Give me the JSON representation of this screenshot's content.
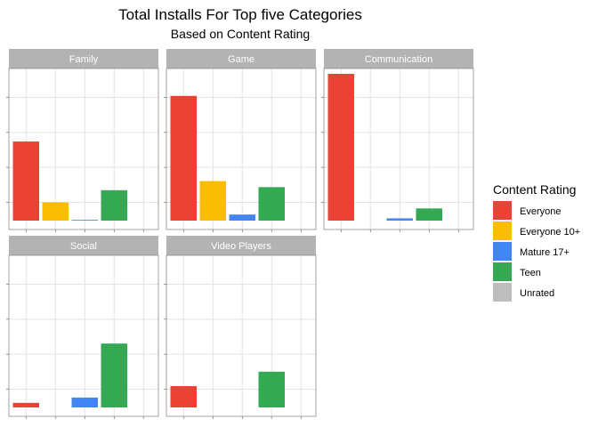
{
  "chart_data": {
    "type": "bar",
    "title": "Total Installs For Top five Categories",
    "subtitle": "Based on Content Rating",
    "xlabel": "",
    "ylabel": "",
    "categories": [
      "Everyone",
      "Everyone 10+",
      "Mature 17+",
      "Teen",
      "Unrated"
    ],
    "ylim": [
      0,
      1
    ],
    "grid": true,
    "legend": {
      "title": "Content Rating",
      "placement": "right",
      "entries": [
        {
          "label": "Everyone",
          "color": "#ea4335"
        },
        {
          "label": "Everyone 10+",
          "color": "#fbbc04"
        },
        {
          "label": "Mature 17+",
          "color": "#4285f4"
        },
        {
          "label": "Teen",
          "color": "#34a853"
        },
        {
          "label": "Unrated",
          "color": "#bdbdbd"
        }
      ]
    },
    "facets": [
      {
        "name": "Family",
        "values": [
          0.52,
          0.12,
          0.005,
          0.2,
          0
        ]
      },
      {
        "name": "Game",
        "values": [
          0.82,
          0.26,
          0.04,
          0.22,
          0
        ]
      },
      {
        "name": "Communication",
        "values": [
          0.965,
          0,
          0.015,
          0.08,
          0
        ]
      },
      {
        "name": "Social",
        "values": [
          0.03,
          0,
          0.065,
          0.42,
          0
        ]
      },
      {
        "name": "Video Players",
        "values": [
          0.14,
          0,
          0,
          0.235,
          0
        ]
      }
    ]
  }
}
